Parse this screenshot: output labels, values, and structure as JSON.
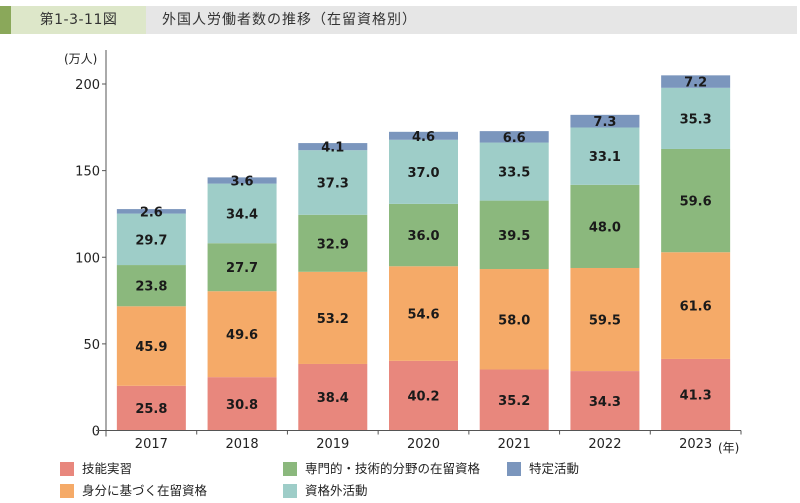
{
  "header": {
    "figure_number": "第1-3-11図",
    "title": "外国人労働者数の推移（在留資格別）"
  },
  "chart_data": {
    "type": "bar",
    "stacked": true,
    "title": "外国人労働者数の推移（在留資格別）",
    "xlabel": "(年)",
    "ylabel": "(万人)",
    "ylim": [
      0,
      200
    ],
    "yticks": [
      0,
      50,
      100,
      150,
      200
    ],
    "grid": false,
    "legend_position": "bottom",
    "categories": [
      "2017",
      "2018",
      "2019",
      "2020",
      "2021",
      "2022",
      "2023"
    ],
    "series": [
      {
        "name": "技能実習",
        "color": "#e8877d",
        "values": [
          25.8,
          30.8,
          38.4,
          40.2,
          35.2,
          34.3,
          41.3
        ]
      },
      {
        "name": "身分に基づく在留資格",
        "color": "#f5aa68",
        "values": [
          45.9,
          49.6,
          53.2,
          54.6,
          58.0,
          59.5,
          61.6
        ]
      },
      {
        "name": "専門的・技術的分野の在留資格",
        "color": "#8bb87d",
        "values": [
          23.8,
          27.7,
          32.9,
          36.0,
          39.5,
          48.0,
          59.6
        ]
      },
      {
        "name": "資格外活動",
        "color": "#9ecdc8",
        "values": [
          29.7,
          34.4,
          37.3,
          37.0,
          33.5,
          33.1,
          35.3
        ]
      },
      {
        "name": "特定活動",
        "color": "#7b96bd",
        "values": [
          2.6,
          3.6,
          4.1,
          4.6,
          6.6,
          7.3,
          7.2
        ]
      }
    ]
  },
  "legend": [
    {
      "label": "技能実習",
      "series": 0
    },
    {
      "label": "専門的・技術的分野の在留資格",
      "series": 2
    },
    {
      "label": "特定活動",
      "series": 4
    },
    {
      "label": "身分に基づく在留資格",
      "series": 1
    },
    {
      "label": "資格外活動",
      "series": 3
    }
  ]
}
